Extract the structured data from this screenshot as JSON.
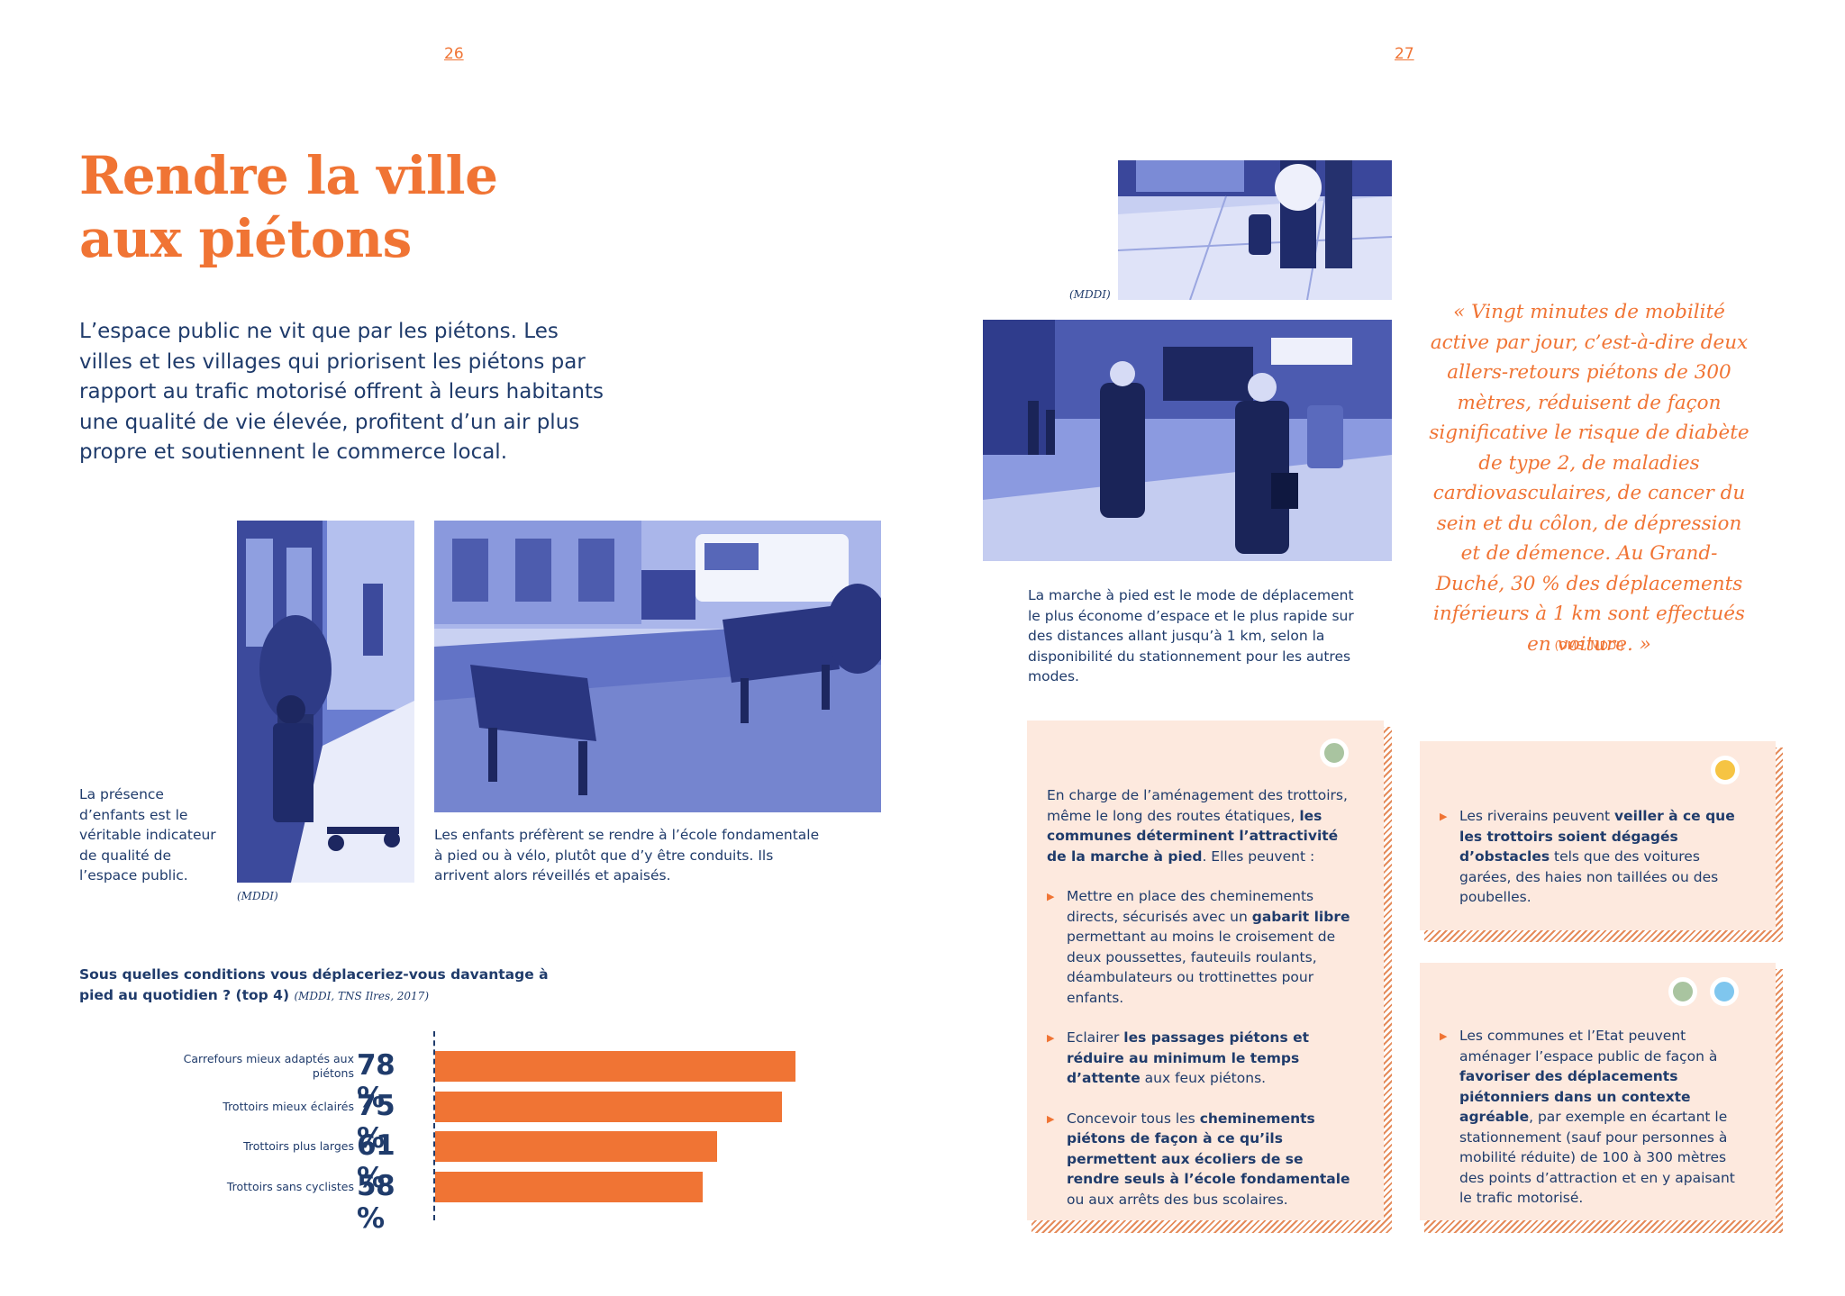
{
  "pages": {
    "left": "26",
    "right": "27"
  },
  "title": {
    "line1": "Rendre la ville",
    "line2": "aux piétons"
  },
  "intro": "L’espace public ne vit que par les piétons. Les villes et les villages qui priorisent les piétons par rapport au trafic motorisé offrent à leurs habitants une qualité de vie élevée, profitent d’un air plus propre et soutiennent le commerce local.",
  "captions": {
    "children": "La présence d’enfants est le véritable indicateur de qualité de l’espace public.",
    "school": "Les enfants préfèrent se rendre à l’école fondamentale à pied ou à vélo, plutôt que d’y être conduits. Ils arrivent alors réveillés et apaisés.",
    "walking": "La marche à pied est le mode de déplacement le plus économe d’espace et le plus rapide sur des distances allant jusqu’à 1 km, selon la disponibilité du stationnement pour les autres modes."
  },
  "credits": {
    "photo_left": "(MDDI)",
    "photo_right_top": "(MDDI)"
  },
  "quote": {
    "text": "« Vingt minutes de mobilité active par jour, c’est-à-dire deux allers-retours piétons de 300 mètres, réduisent de façon significative le risque de diabète de type 2, de maladies cardiovasculaires, de cancer du sein et du côlon, de dépression et de démence. Au Grand-Duché, 30 % des déplacements inférieurs à 1 km sont effectués en voiture. »",
    "source": "(OMS, MDDI)"
  },
  "chart_data": {
    "type": "bar",
    "orientation": "horizontal",
    "title": "Sous quelles conditions vous déplaceriez-vous davantage à pied au quotidien ? (top 4)",
    "source": "(MDDI, TNS Ilres, 2017)",
    "categories": [
      "Carrefours mieux adaptés aux piétons",
      "Trottoirs mieux éclairés",
      "Trottoirs plus larges",
      "Trottoirs sans cyclistes"
    ],
    "values": [
      78,
      75,
      61,
      58
    ],
    "value_labels": [
      "78 %",
      "75 %",
      "61 %",
      "58 %"
    ],
    "unit": "%",
    "xlim": [
      0,
      100
    ],
    "grid": false,
    "bar_color": "#f07434"
  },
  "box1": {
    "intro_a": "En charge de l’aménagement des trottoirs, même le long des routes étatiques, ",
    "intro_b": "les communes déterminent l’attractivité de la marche à pied",
    "intro_c": ". Elles peuvent :",
    "b1_a": "Mettre en place des cheminements directs, sécurisés avec un ",
    "b1_b": "gabarit libre",
    "b1_c": " permettant au moins le croisement de deux poussettes, fauteuils roulants, déambulateurs ou trottinettes pour enfants.",
    "b2_a": "Eclairer ",
    "b2_b": "les passages piétons et réduire au minimum le temps d’attente",
    "b2_c": " aux feux piétons.",
    "b3_a": "Concevoir tous les ",
    "b3_b": "cheminements piétons de façon à ce qu’ils permettent aux écoliers de se rendre seuls à l’école fondamentale",
    "b3_c": " ou aux arrêts des bus scolaires.",
    "dot_color": "#a9c4a0"
  },
  "box2": {
    "a": "Les riverains peuvent ",
    "b": "veiller à ce que les trottoirs soient dégagés d’obstacles",
    "c": " tels que des voitures garées, des haies non taillées ou des poubelles.",
    "dot_color": "#f6c443"
  },
  "box3": {
    "a": "Les communes et l’Etat peuvent aménager l’espace public de façon à ",
    "b": "favoriser des déplacements piétonniers dans un contexte agréable",
    "c": ", par exemple en écartant le stationnement (sauf pour personnes à mobilité réduite) de 100 à 300 mètres des points d’attraction et en y apaisant le trafic motorisé.",
    "dot_colors": [
      "#a9c4a0",
      "#7fc6ee"
    ]
  },
  "colors": {
    "accent": "#f07434",
    "text": "#1f3b6b",
    "box": "#fde9de",
    "photo": "#5c6fc4"
  }
}
